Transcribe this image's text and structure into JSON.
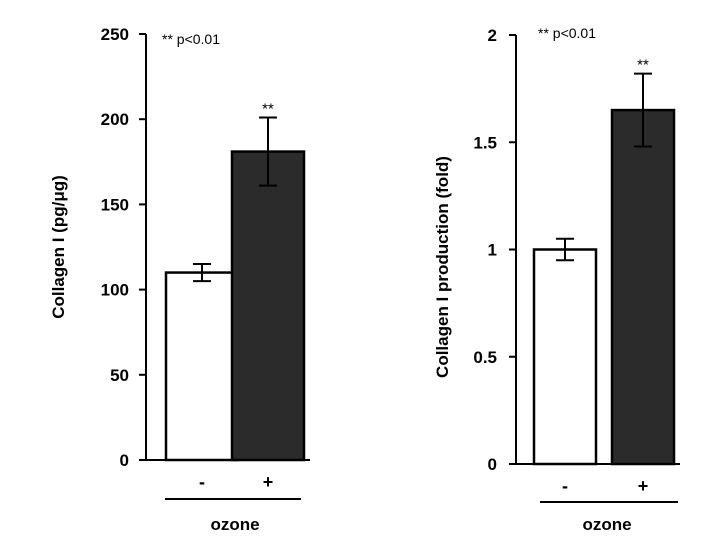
{
  "chart_data": [
    {
      "type": "bar",
      "title": "",
      "xlabel": "ozone",
      "ylabel": "Collagen I (pg/μg)",
      "ylim": [
        0,
        250
      ],
      "yticks": [
        0,
        50,
        100,
        150,
        200,
        250
      ],
      "ytick_labels": [
        "0",
        "50",
        "100",
        "150",
        "200",
        "250"
      ],
      "categories": [
        "-",
        "+"
      ],
      "values": [
        110,
        181
      ],
      "error": [
        5,
        20
      ],
      "bar_colors": [
        "#ffffff",
        "#2b2b2b"
      ],
      "significance": [
        "",
        "**"
      ],
      "annotation": "** p<0.01",
      "grid": false,
      "legend": "none"
    },
    {
      "type": "bar",
      "title": "",
      "xlabel": "ozone",
      "ylabel": "Collagen I production (fold)",
      "ylim": [
        0,
        2
      ],
      "yticks": [
        0,
        0.5,
        1,
        1.5,
        2
      ],
      "ytick_labels": [
        "0",
        "0.5",
        "1",
        "1.5",
        "2"
      ],
      "categories": [
        "-",
        "+"
      ],
      "values": [
        1.0,
        1.65
      ],
      "error": [
        0.05,
        0.17
      ],
      "bar_colors": [
        "#ffffff",
        "#2b2b2b"
      ],
      "significance": [
        "",
        "**"
      ],
      "annotation": "** p<0.01",
      "grid": false,
      "legend": "none"
    }
  ]
}
